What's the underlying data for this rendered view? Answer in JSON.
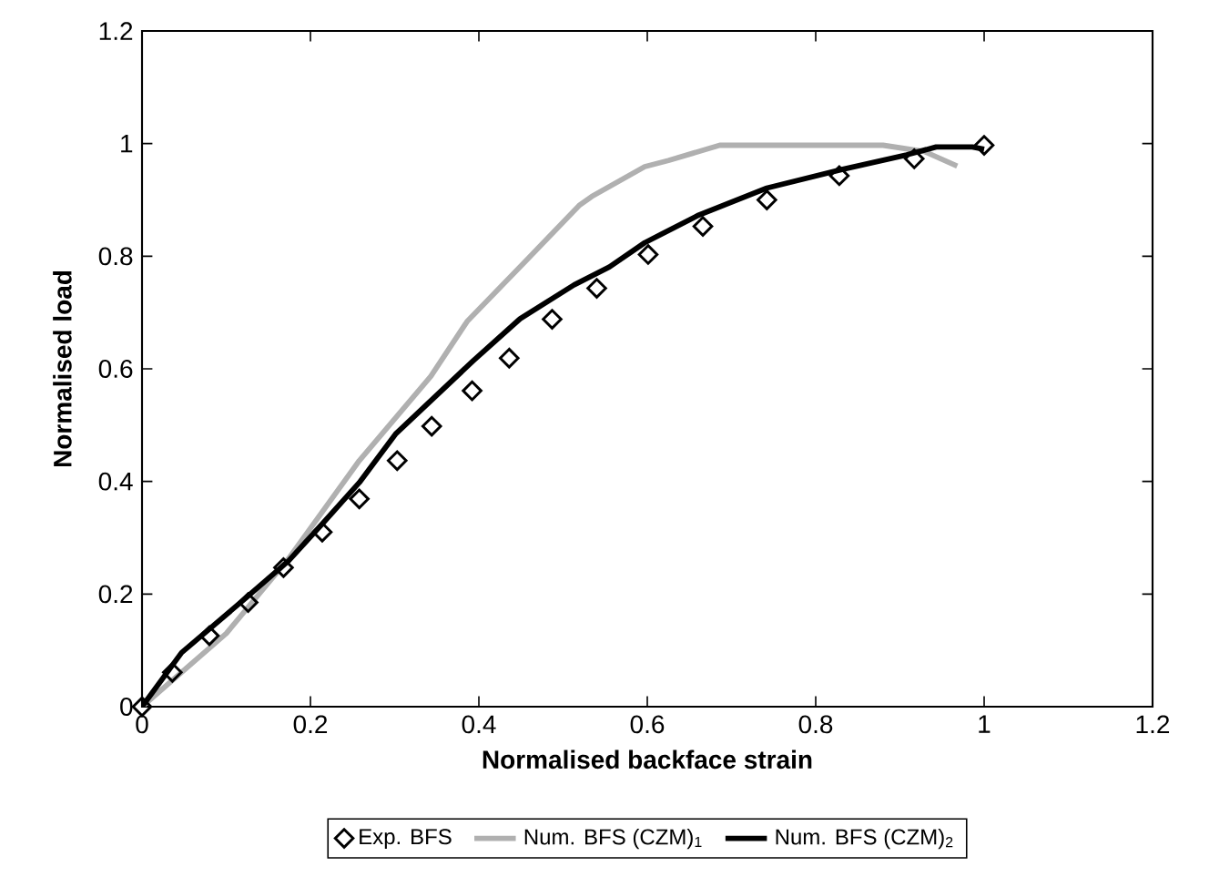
{
  "chart_data": {
    "type": "line",
    "xlabel": "Normalised backface strain",
    "ylabel": "Normalised load",
    "xlim": [
      0,
      1.2
    ],
    "ylim": [
      0,
      1.2
    ],
    "xticks": [
      0,
      0.2,
      0.4,
      0.6,
      0.8,
      1,
      1.2
    ],
    "yticks": [
      0,
      0.2,
      0.4,
      0.6,
      0.8,
      1,
      1.2
    ],
    "grid": false,
    "legend": "bottom",
    "marker": "none",
    "series": [
      {
        "name": "Exp. BFS",
        "type": "scatter",
        "marker": "diamond",
        "color": "#000000",
        "x": [
          0,
          0.036,
          0.08,
          0.126,
          0.168,
          0.214,
          0.258,
          0.303,
          0.344,
          0.392,
          0.436,
          0.487,
          0.54,
          0.601,
          0.666,
          0.742,
          0.828,
          0.917,
          1.0
        ],
        "values": [
          0,
          0.061,
          0.126,
          0.185,
          0.247,
          0.31,
          0.369,
          0.437,
          0.498,
          0.561,
          0.619,
          0.688,
          0.743,
          0.803,
          0.853,
          0.9,
          0.943,
          0.973,
          0.997
        ]
      },
      {
        "name": "Num. BFS (CZM)$_{1}$",
        "color": "#b0b0b0",
        "x": [
          0,
          0.1,
          0.174,
          0.258,
          0.343,
          0.386,
          0.456,
          0.519,
          0.534,
          0.597,
          0.625,
          0.686,
          0.88,
          0.929,
          0.968
        ],
        "values": [
          0,
          0.13,
          0.263,
          0.437,
          0.587,
          0.684,
          0.792,
          0.89,
          0.906,
          0.959,
          0.97,
          0.997,
          0.997,
          0.986,
          0.96
        ]
      },
      {
        "name": "Num. BFS (CZM)$_{2}$",
        "color": "#000000",
        "x": [
          0,
          0.047,
          0.124,
          0.174,
          0.216,
          0.258,
          0.301,
          0.347,
          0.393,
          0.449,
          0.513,
          0.555,
          0.597,
          0.661,
          0.742,
          0.831,
          0.908,
          0.943,
          0.986,
          1.0
        ],
        "values": [
          0,
          0.096,
          0.194,
          0.259,
          0.328,
          0.398,
          0.484,
          0.549,
          0.614,
          0.689,
          0.749,
          0.781,
          0.824,
          0.873,
          0.921,
          0.954,
          0.98,
          0.994,
          0.994,
          0.99
        ]
      }
    ]
  }
}
